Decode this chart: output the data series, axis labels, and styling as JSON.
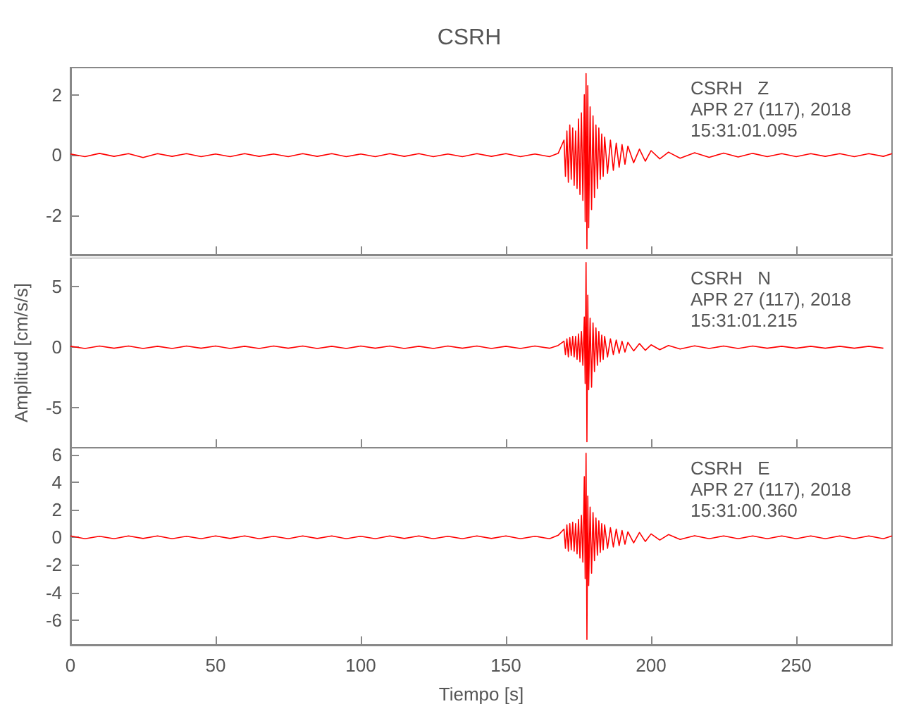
{
  "chart_data": [
    {
      "type": "line",
      "title": "CSRH",
      "annotations": [
        "CSRH   Z",
        "APR 27 (117), 2018",
        "15:31:01.095"
      ],
      "tick_labels": "y",
      "grid": false,
      "marker": "none",
      "line_style": "solid",
      "xlim": [
        0,
        283
      ],
      "xticks": [
        0,
        50,
        100,
        150,
        200,
        250
      ],
      "ylim": [
        -3.3,
        2.9
      ],
      "yticks": [
        -2,
        0,
        2
      ],
      "x": [
        0,
        5,
        10,
        15,
        20,
        25,
        30,
        35,
        40,
        45,
        50,
        55,
        60,
        65,
        70,
        75,
        80,
        85,
        90,
        95,
        100,
        105,
        110,
        115,
        120,
        125,
        130,
        135,
        140,
        145,
        150,
        155,
        160,
        165,
        168,
        170,
        170.5,
        171,
        171.5,
        172,
        172.5,
        173,
        173.5,
        174,
        174.5,
        175,
        175.5,
        176,
        176.5,
        177,
        177.3,
        177.6,
        177.9,
        178.2,
        178.5,
        179,
        179.5,
        180,
        180.5,
        181,
        181.5,
        182,
        182.5,
        183,
        183.5,
        184,
        185,
        186,
        187,
        188,
        189,
        190,
        191,
        192,
        194,
        196,
        198,
        200,
        203,
        206,
        210,
        215,
        220,
        225,
        230,
        235,
        240,
        245,
        250,
        255,
        260,
        265,
        270,
        275,
        280,
        283
      ],
      "series": [
        {
          "color": "#ff0000",
          "values": [
            0.04,
            -0.05,
            0.06,
            -0.04,
            0.05,
            -0.08,
            0.05,
            -0.04,
            0.05,
            -0.05,
            0.04,
            -0.05,
            0.05,
            -0.04,
            0.04,
            -0.05,
            0.05,
            -0.04,
            0.05,
            -0.05,
            0.04,
            -0.05,
            0.05,
            -0.04,
            0.05,
            -0.05,
            0.04,
            -0.05,
            0.05,
            -0.04,
            0.05,
            -0.05,
            0.04,
            -0.05,
            0.06,
            0.5,
            -0.7,
            0.8,
            -0.9,
            1.0,
            -0.8,
            0.9,
            -1.0,
            0.8,
            -1.1,
            1.2,
            -1.3,
            1.4,
            -1.5,
            2.0,
            -2.2,
            2.7,
            -3.1,
            2.3,
            -2.4,
            1.6,
            -1.8,
            1.3,
            -1.4,
            1.0,
            -1.1,
            0.9,
            -0.8,
            0.7,
            -0.7,
            0.6,
            -0.6,
            0.5,
            -0.5,
            0.4,
            -0.4,
            0.35,
            -0.3,
            0.3,
            -0.25,
            0.2,
            -0.2,
            0.15,
            -0.12,
            0.1,
            -0.1,
            0.08,
            -0.07,
            0.07,
            -0.06,
            0.06,
            -0.05,
            0.05,
            -0.05,
            0.05,
            -0.04,
            0.05,
            -0.05,
            0.05,
            -0.04,
            0.05
          ]
        }
      ]
    },
    {
      "type": "line",
      "ylabel": "Amplitud [cm/s/s]",
      "annotations": [
        "CSRH   N",
        "APR 27 (117), 2018",
        "15:31:01.215"
      ],
      "tick_labels": "y",
      "grid": false,
      "marker": "none",
      "line_style": "solid",
      "xlim": [
        0,
        283
      ],
      "xticks": [
        0,
        50,
        100,
        150,
        200,
        250
      ],
      "ylim": [
        -8.3,
        7.4
      ],
      "yticks": [
        -5,
        0,
        5
      ],
      "x": [
        0,
        5,
        10,
        15,
        20,
        25,
        30,
        35,
        40,
        45,
        50,
        55,
        60,
        65,
        70,
        75,
        80,
        85,
        90,
        95,
        100,
        105,
        110,
        115,
        120,
        125,
        130,
        135,
        140,
        145,
        150,
        155,
        160,
        165,
        168,
        170,
        170.5,
        171,
        171.5,
        172,
        172.5,
        173,
        173.5,
        174,
        174.5,
        175,
        175.5,
        176,
        176.5,
        177,
        177.3,
        177.6,
        177.9,
        178.2,
        178.5,
        179,
        179.5,
        180,
        180.5,
        181,
        181.5,
        182,
        182.5,
        183,
        183.5,
        184,
        185,
        186,
        187,
        188,
        189,
        190,
        191,
        192,
        194,
        196,
        198,
        200,
        203,
        206,
        210,
        215,
        220,
        225,
        230,
        235,
        240,
        245,
        250,
        255,
        260,
        265,
        270,
        275,
        280
      ],
      "series": [
        {
          "color": "#ff0000",
          "values": [
            0.08,
            -0.1,
            0.1,
            -0.08,
            0.1,
            -0.1,
            0.08,
            -0.1,
            0.1,
            -0.08,
            0.1,
            -0.1,
            0.08,
            -0.1,
            0.1,
            -0.08,
            0.1,
            -0.1,
            0.08,
            -0.1,
            0.1,
            -0.08,
            0.1,
            -0.1,
            0.08,
            -0.1,
            0.1,
            -0.08,
            0.1,
            -0.1,
            0.08,
            -0.1,
            0.1,
            -0.08,
            0.15,
            0.5,
            -0.6,
            0.7,
            -0.8,
            0.8,
            -0.7,
            0.9,
            -0.8,
            0.9,
            -1.0,
            1.1,
            -1.2,
            1.3,
            -1.5,
            2.5,
            -3.0,
            7.0,
            -7.8,
            4.3,
            -3.5,
            2.4,
            -3.3,
            2.0,
            -2.0,
            1.6,
            -1.5,
            1.3,
            -1.2,
            1.0,
            -1.0,
            0.9,
            -0.8,
            0.7,
            -0.6,
            0.6,
            -0.5,
            0.5,
            -0.4,
            0.4,
            -0.3,
            0.3,
            -0.25,
            0.2,
            -0.2,
            0.15,
            -0.15,
            0.12,
            -0.1,
            0.1,
            -0.1,
            0.1,
            -0.08,
            0.08,
            -0.08,
            0.08,
            -0.08,
            0.08,
            -0.08,
            0.08,
            -0.08
          ]
        }
      ]
    },
    {
      "type": "line",
      "xlabel": "Tiempo [s]",
      "annotations": [
        "CSRH   E",
        "APR 27 (117), 2018",
        "15:31:00.360"
      ],
      "grid": false,
      "marker": "none",
      "line_style": "solid",
      "xlim": [
        0,
        283
      ],
      "xticks": [
        0,
        50,
        100,
        150,
        200,
        250
      ],
      "ylim": [
        -7.8,
        6.5
      ],
      "yticks": [
        -6,
        -4,
        -2,
        0,
        2,
        4,
        6
      ],
      "x": [
        0,
        5,
        10,
        15,
        20,
        25,
        30,
        35,
        40,
        45,
        50,
        55,
        60,
        65,
        70,
        75,
        80,
        85,
        90,
        95,
        100,
        105,
        110,
        115,
        120,
        125,
        130,
        135,
        140,
        145,
        150,
        155,
        160,
        165,
        168,
        170,
        170.5,
        171,
        171.5,
        172,
        172.5,
        173,
        173.5,
        174,
        174.5,
        175,
        175.5,
        176,
        176.5,
        177,
        177.3,
        177.6,
        177.9,
        178.2,
        178.5,
        179,
        179.5,
        180,
        180.5,
        181,
        181.5,
        182,
        182.5,
        183,
        183.5,
        184,
        185,
        186,
        187,
        188,
        189,
        190,
        191,
        192,
        194,
        196,
        198,
        200,
        203,
        206,
        210,
        215,
        220,
        225,
        230,
        235,
        240,
        245,
        250,
        255,
        260,
        265,
        270,
        275,
        280,
        283
      ],
      "series": [
        {
          "color": "#ff0000",
          "values": [
            0.1,
            -0.1,
            0.08,
            -0.1,
            0.1,
            -0.08,
            0.1,
            -0.1,
            0.08,
            -0.1,
            0.1,
            -0.08,
            0.1,
            -0.1,
            0.08,
            -0.1,
            0.1,
            -0.08,
            0.1,
            -0.1,
            0.08,
            -0.1,
            0.1,
            -0.08,
            0.1,
            -0.1,
            0.08,
            -0.1,
            0.1,
            -0.08,
            0.1,
            -0.1,
            0.08,
            -0.1,
            0.15,
            0.6,
            -0.8,
            0.9,
            -1.0,
            1.0,
            -0.9,
            1.1,
            -1.0,
            1.0,
            -1.2,
            1.3,
            -1.5,
            1.6,
            -1.8,
            4.4,
            -3.0,
            6.1,
            -7.4,
            3.0,
            -3.5,
            2.2,
            -2.6,
            1.8,
            -1.7,
            1.4,
            -1.3,
            1.2,
            -1.1,
            1.0,
            -0.9,
            0.9,
            -0.8,
            0.7,
            -0.7,
            0.6,
            -0.6,
            0.5,
            -0.5,
            0.4,
            -0.4,
            0.35,
            -0.3,
            0.25,
            -0.2,
            0.2,
            -0.15,
            0.12,
            -0.1,
            0.1,
            -0.1,
            0.1,
            -0.1,
            0.1,
            -0.1,
            0.1,
            -0.1,
            0.1,
            -0.1,
            0.1,
            -0.1,
            0.1
          ]
        }
      ]
    }
  ]
}
